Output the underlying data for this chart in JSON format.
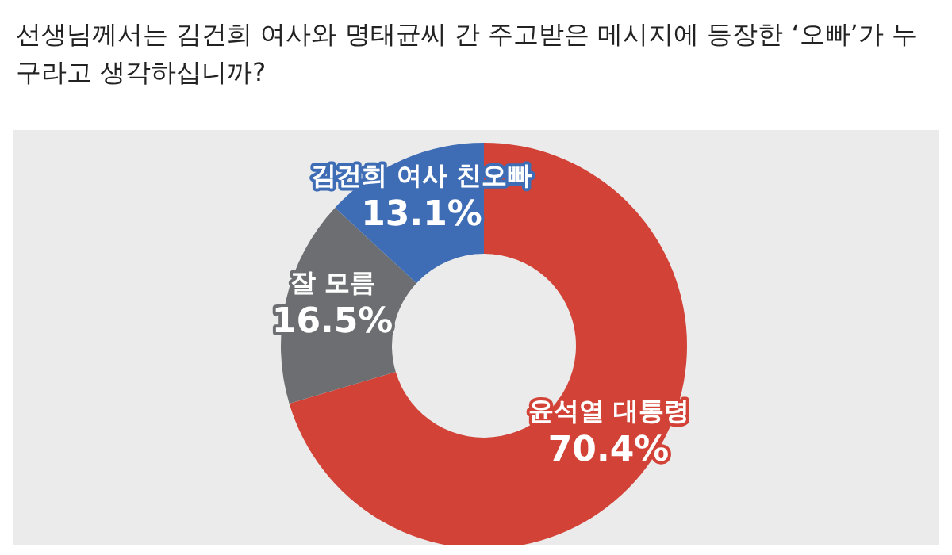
{
  "chart_data": {
    "type": "donut",
    "title": "선생님께서는 김건희 여사와 명태균씨 간 주고받은 메시지에 등장한 ‘오빠’가 누구라고 생각하십니까?",
    "categories": [
      "윤석열 대통령",
      "잘 모름",
      "김건희 여사 친오빠"
    ],
    "values": [
      70.4,
      16.5,
      13.1
    ],
    "value_labels": [
      "70.4%",
      "16.5%",
      "13.1%"
    ],
    "colors": [
      "#d24236",
      "#6d6e71",
      "#3e6db5"
    ]
  }
}
